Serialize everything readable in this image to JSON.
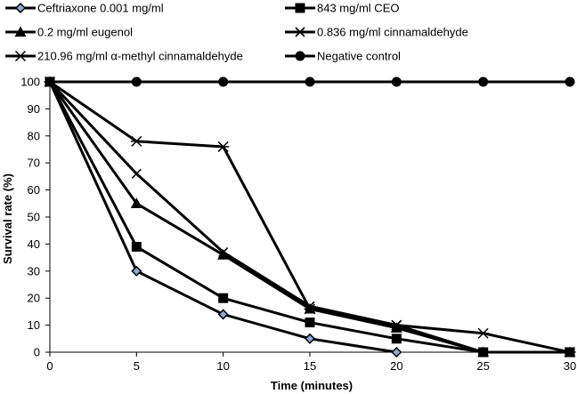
{
  "chart_data": {
    "type": "line",
    "title": "",
    "xlabel": "Time (minutes)",
    "ylabel": "Survival rate (%)",
    "x": [
      0,
      5,
      10,
      15,
      20,
      25,
      30
    ],
    "xlim": [
      0,
      30
    ],
    "ylim": [
      0,
      100
    ],
    "xticks": [
      "0",
      "5",
      "10",
      "15",
      "20",
      "25",
      "30"
    ],
    "yticks": [
      "0",
      "10",
      "20",
      "30",
      "40",
      "50",
      "60",
      "70",
      "80",
      "90",
      "100"
    ],
    "grid": false,
    "legend_position": "top",
    "series": [
      {
        "name": "Ceftriaxone 0.001 mg/ml",
        "marker": "diamond",
        "x": [
          0,
          5,
          10,
          15,
          20
        ],
        "values": [
          100,
          30,
          14,
          5,
          0
        ]
      },
      {
        "name": "843 mg/ml CEO",
        "marker": "square",
        "x": [
          0,
          5,
          10,
          15,
          20,
          25,
          30
        ],
        "values": [
          100,
          39,
          20,
          11,
          5,
          0,
          0
        ]
      },
      {
        "name": "0.2 mg/ml eugenol",
        "marker": "triangle",
        "x": [
          0,
          5,
          10,
          15,
          20,
          25,
          30
        ],
        "values": [
          100,
          55,
          36,
          16,
          9,
          0,
          0
        ]
      },
      {
        "name": "0.836 mg/ml cinnamaldehyde",
        "marker": "x",
        "x": [
          0,
          5,
          10,
          15,
          20,
          25,
          30
        ],
        "values": [
          100,
          66,
          37,
          17,
          10,
          0,
          0
        ]
      },
      {
        "name": "210.96 mg/ml α-methyl cinnamaldehyde",
        "marker": "star",
        "x": [
          0,
          5,
          10,
          15,
          20,
          25,
          30
        ],
        "values": [
          100,
          78,
          76,
          16,
          10,
          7,
          0
        ]
      },
      {
        "name": "Negative control",
        "marker": "circle",
        "x": [
          0,
          5,
          10,
          15,
          20,
          25,
          30
        ],
        "values": [
          100,
          100,
          100,
          100,
          100,
          100,
          100
        ]
      }
    ]
  },
  "colors": {
    "line": "#000000",
    "diamond_fill": "#8fa8d8",
    "background": "#ffffff"
  }
}
